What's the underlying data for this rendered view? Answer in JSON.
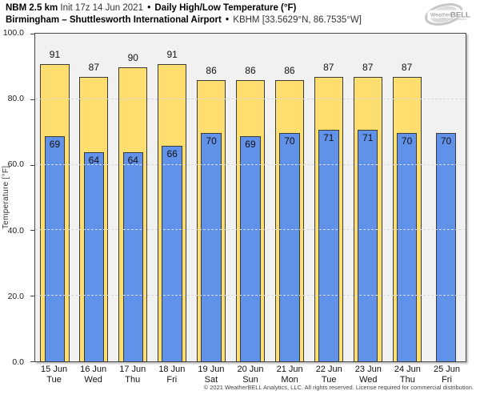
{
  "header": {
    "line1": {
      "model": "NBM 2.5 km",
      "init": "Init 17z 14 Jun 2021",
      "bullet": "•",
      "product": "Daily High/Low Temperature (°F)"
    },
    "line2": {
      "station": "Birmingham – Shuttlesworth International Airport",
      "bullet": "•",
      "location": "KBHM [33.5629°N, 86.7535°W]"
    }
  },
  "logo": {
    "text_weather": "Weather",
    "text_bell": "BELL"
  },
  "chart_data": {
    "type": "bar",
    "title": "Daily High/Low Temperature (°F)",
    "ylabel": "Temperature [°F]",
    "ylim": [
      0,
      100
    ],
    "yticks": [
      {
        "value": 0,
        "label": "0.0"
      },
      {
        "value": 20,
        "label": "20.0"
      },
      {
        "value": 40,
        "label": "40.0"
      },
      {
        "value": 60,
        "label": "60.0"
      },
      {
        "value": 80,
        "label": "80.0"
      },
      {
        "value": 100,
        "label": "100.0"
      }
    ],
    "gridlines": [
      20,
      40,
      60,
      80
    ],
    "grid": "dashed-horizontal",
    "legend_position": "none",
    "categories": [
      {
        "date": "15 Jun",
        "day": "Tue"
      },
      {
        "date": "16 Jun",
        "day": "Wed"
      },
      {
        "date": "17 Jun",
        "day": "Thu"
      },
      {
        "date": "18 Jun",
        "day": "Fri"
      },
      {
        "date": "19 Jun",
        "day": "Sat"
      },
      {
        "date": "20 Jun",
        "day": "Sun"
      },
      {
        "date": "21 Jun",
        "day": "Mon"
      },
      {
        "date": "22 Jun",
        "day": "Tue"
      },
      {
        "date": "23 Jun",
        "day": "Wed"
      },
      {
        "date": "24 Jun",
        "day": "Thu"
      },
      {
        "date": "25 Jun",
        "day": "Fri"
      }
    ],
    "series": [
      {
        "name": "Daily High",
        "values": [
          91,
          87,
          90,
          91,
          86,
          86,
          86,
          87,
          87,
          87,
          null
        ]
      },
      {
        "name": "Daily Low",
        "values": [
          69,
          64,
          64,
          66,
          70,
          69,
          70,
          71,
          71,
          70,
          70
        ]
      }
    ]
  },
  "colors": {
    "high_bar": "#FDDE6E",
    "low_bar": "#6192E9",
    "bar_border": "#3B3B3B",
    "plot_bg": "#F1F1F1",
    "grid": "#D9D9D9",
    "frame": "#4A4A4A"
  },
  "footer": {
    "copyright": "© 2021 WeatherBELL Analytics, LLC. All rights reserved. License required for commercial distribution."
  }
}
